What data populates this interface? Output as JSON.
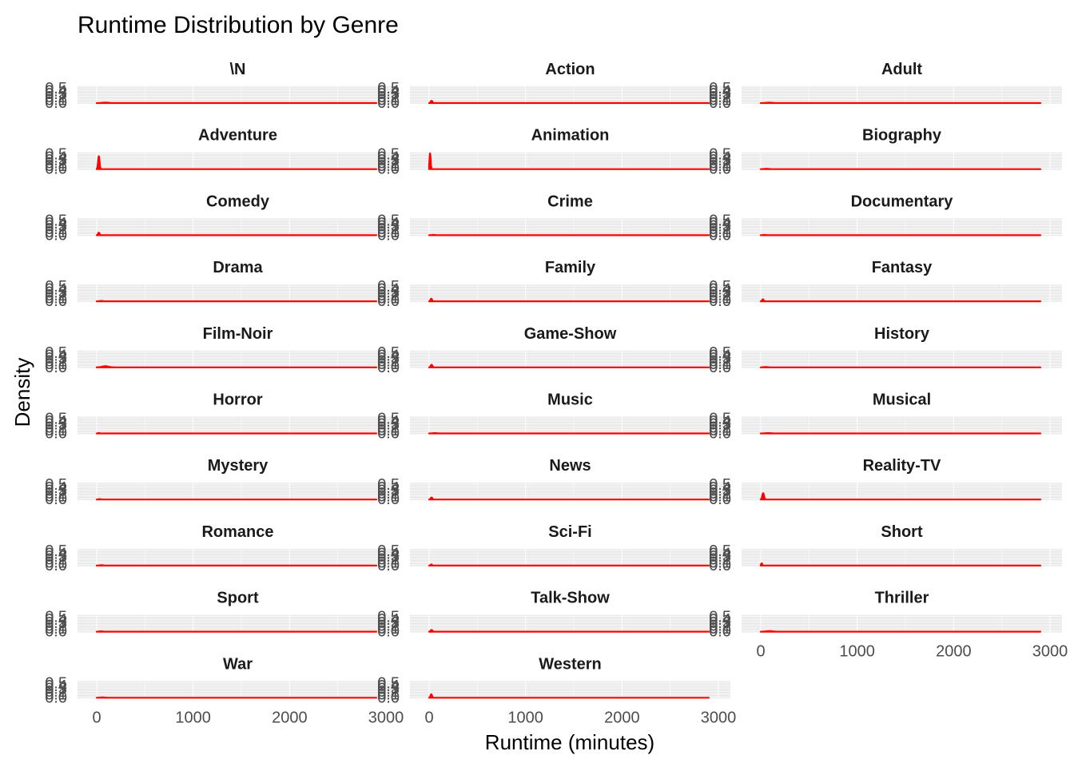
{
  "chart_data": {
    "type": "area",
    "title": "Runtime Distribution by Genre",
    "xlabel": "Runtime (minutes)",
    "ylabel": "Density",
    "xlim": [
      0,
      2900
    ],
    "ylim": [
      0,
      0.5
    ],
    "x_ticks": [
      "0",
      "1000",
      "2000",
      "3000"
    ],
    "y_ticks": [
      "0.0",
      "0.1",
      "0.2",
      "0.3",
      "0.4",
      "0.5"
    ],
    "grid": true,
    "ncol": 3,
    "colors": {
      "line": "#ff0000",
      "panel_bg": "#ebebeb",
      "grid": "#ffffff"
    },
    "facets": [
      {
        "name": "\\N",
        "peak_x": 90,
        "peak_y": 0.015
      },
      {
        "name": "Action",
        "peak_x": 25,
        "peak_y": 0.08
      },
      {
        "name": "Adult",
        "peak_x": 90,
        "peak_y": 0.015
      },
      {
        "name": "Adventure",
        "peak_x": 22,
        "peak_y": 0.45
      },
      {
        "name": "Animation",
        "peak_x": 10,
        "peak_y": 0.55
      },
      {
        "name": "Biography",
        "peak_x": 60,
        "peak_y": 0.012
      },
      {
        "name": "Comedy",
        "peak_x": 22,
        "peak_y": 0.09
      },
      {
        "name": "Crime",
        "peak_x": 45,
        "peak_y": 0.012
      },
      {
        "name": "Documentary",
        "peak_x": 40,
        "peak_y": 0.012
      },
      {
        "name": "Drama",
        "peak_x": 45,
        "peak_y": 0.012
      },
      {
        "name": "Family",
        "peak_x": 22,
        "peak_y": 0.09
      },
      {
        "name": "Fantasy",
        "peak_x": 22,
        "peak_y": 0.07
      },
      {
        "name": "Film-Noir",
        "peak_x": 90,
        "peak_y": 0.04
      },
      {
        "name": "Game-Show",
        "peak_x": 25,
        "peak_y": 0.09
      },
      {
        "name": "History",
        "peak_x": 50,
        "peak_y": 0.012
      },
      {
        "name": "Horror",
        "peak_x": 22,
        "peak_y": 0.015
      },
      {
        "name": "Music",
        "peak_x": 60,
        "peak_y": 0.012
      },
      {
        "name": "Musical",
        "peak_x": 80,
        "peak_y": 0.012
      },
      {
        "name": "Mystery",
        "peak_x": 30,
        "peak_y": 0.015
      },
      {
        "name": "News",
        "peak_x": 25,
        "peak_y": 0.07
      },
      {
        "name": "Reality-TV",
        "peak_x": 25,
        "peak_y": 0.22
      },
      {
        "name": "Romance",
        "peak_x": 50,
        "peak_y": 0.015
      },
      {
        "name": "Sci-Fi",
        "peak_x": 22,
        "peak_y": 0.04
      },
      {
        "name": "Short",
        "peak_x": 10,
        "peak_y": 0.08
      },
      {
        "name": "Sport",
        "peak_x": 45,
        "peak_y": 0.012
      },
      {
        "name": "Talk-Show",
        "peak_x": 25,
        "peak_y": 0.06
      },
      {
        "name": "Thriller",
        "peak_x": 90,
        "peak_y": 0.02
      },
      {
        "name": "War",
        "peak_x": 60,
        "peak_y": 0.012
      },
      {
        "name": "Western",
        "peak_x": 22,
        "peak_y": 0.12
      }
    ]
  }
}
